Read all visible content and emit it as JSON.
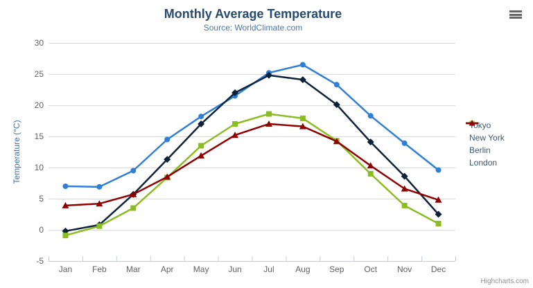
{
  "chart_data": {
    "type": "line",
    "title": "Monthly Average Temperature",
    "subtitle": "Source: WorldClimate.com",
    "xlabel": "",
    "ylabel": "Temperature (°C)",
    "categories": [
      "Jan",
      "Feb",
      "Mar",
      "Apr",
      "May",
      "Jun",
      "Jul",
      "Aug",
      "Sep",
      "Oct",
      "Nov",
      "Dec"
    ],
    "ylim": [
      -5,
      30
    ],
    "ytick_step": 5,
    "grid": true,
    "legend_position": "right",
    "series": [
      {
        "name": "Tokyo",
        "color": "#2f7ed8",
        "marker": "circle",
        "values": [
          7.0,
          6.9,
          9.5,
          14.5,
          18.2,
          21.5,
          25.2,
          26.5,
          23.3,
          18.3,
          13.9,
          9.6
        ]
      },
      {
        "name": "New York",
        "color": "#0d233a",
        "marker": "diamond",
        "values": [
          -0.2,
          0.8,
          5.7,
          11.3,
          17.0,
          22.0,
          24.8,
          24.1,
          20.1,
          14.1,
          8.6,
          2.5
        ]
      },
      {
        "name": "Berlin",
        "color": "#8bbc21",
        "marker": "square",
        "values": [
          -0.9,
          0.6,
          3.5,
          8.4,
          13.5,
          17.0,
          18.6,
          17.9,
          14.3,
          9.0,
          3.9,
          1.0
        ]
      },
      {
        "name": "London",
        "color": "#910000",
        "marker": "triangle",
        "values": [
          3.9,
          4.2,
          5.7,
          8.5,
          11.9,
          15.2,
          17.0,
          16.6,
          14.2,
          10.3,
          6.6,
          4.8
        ]
      }
    ],
    "credits": "Highcharts.com",
    "style": {
      "title_color": "#274b6d",
      "subtitle_color": "#4d759e",
      "grid_color": "#d8d8d8",
      "axis_line_color": "#c0d0e0",
      "tick_label_color": "#606060",
      "axis_title_color": "#4572a7",
      "legend_text_color": "#3e576f",
      "credits_color": "#909090",
      "menu_icon_color": "#666666"
    },
    "icons": {
      "context_menu": "hamburger-icon"
    }
  }
}
